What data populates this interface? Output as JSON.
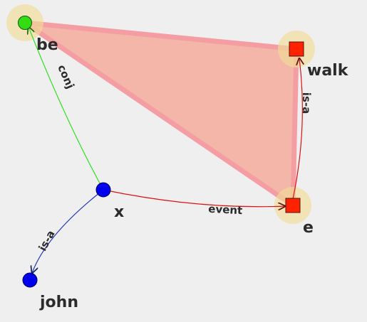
{
  "colors": {
    "background": "#efefef",
    "highlight_triangle": "#f4a09a",
    "halo": "#f1dc95",
    "blue_node": "#0000ee",
    "red_node": "#ff2200",
    "green_node": "#33dd11",
    "conj_edge": "#33cc22",
    "event_edge": "#dd1111",
    "isa_john_edge": "#2233bb",
    "isa_walk_edge": "#dd1111"
  },
  "nodes": [
    {
      "id": "be",
      "label": "be",
      "shape": "circle",
      "color": "#33dd11",
      "highlighted": true
    },
    {
      "id": "walk",
      "label": "walk",
      "shape": "square",
      "color": "#ff2200",
      "highlighted": true
    },
    {
      "id": "e",
      "label": "e",
      "shape": "square",
      "color": "#ff2200",
      "highlighted": true
    },
    {
      "id": "x",
      "label": "x",
      "shape": "circle",
      "color": "#0000ee",
      "highlighted": false
    },
    {
      "id": "john",
      "label": "john",
      "shape": "circle",
      "color": "#0000ee",
      "highlighted": false
    }
  ],
  "edges": [
    {
      "from": "x",
      "to": "be",
      "label": "conj"
    },
    {
      "from": "x",
      "to": "e",
      "label": "event"
    },
    {
      "from": "x",
      "to": "john",
      "label": "is-a"
    },
    {
      "from": "e",
      "to": "walk",
      "label": "is-a"
    }
  ]
}
